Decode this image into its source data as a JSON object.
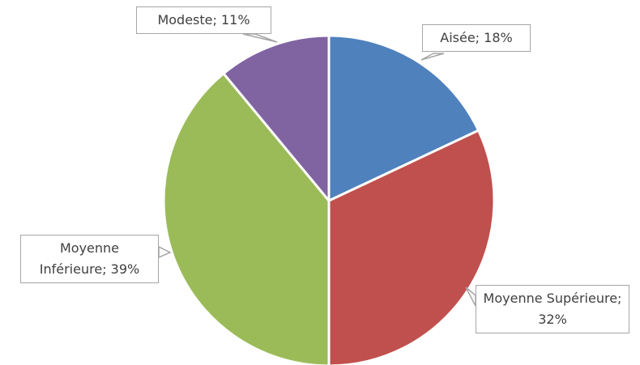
{
  "chart_data": {
    "type": "pie",
    "values": [
      18,
      32,
      39,
      11
    ],
    "value_labels": [
      "Aisée; 18%",
      "Moyenne Supérieure; 32%",
      "Moyenne Inférieure; 39%",
      "Modeste; 11%"
    ],
    "colors": [
      "#4f81bd",
      "#c0504d",
      "#9bbb59",
      "#8064a2"
    ]
  }
}
